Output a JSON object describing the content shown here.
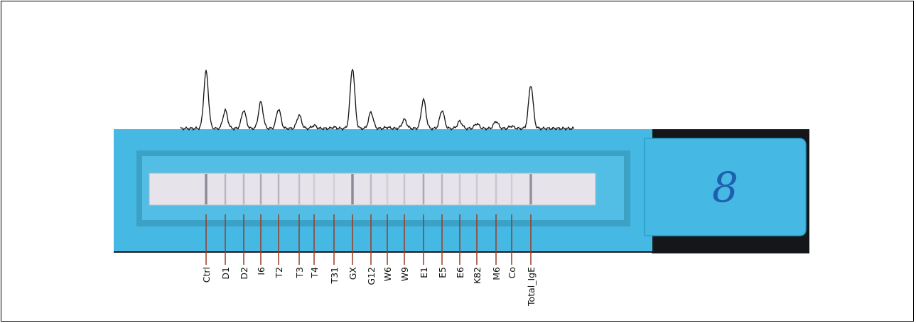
{
  "colors": {
    "strip_body": "#45B8E3",
    "strip_edge": "#2A9DCB",
    "window_bevel": "#3BA2C6",
    "membrane": "#E6E3EA",
    "background_dark": "#141619",
    "band": "#8E8A98",
    "leader_line": "#9B3B22",
    "trace": "#111111",
    "handwriting": "#1E5FAE"
  },
  "handwritten_mark": "8",
  "allergens": [
    {
      "label": "Ctrl",
      "peak": 0.95
    },
    {
      "label": "D1",
      "peak": 0.3
    },
    {
      "label": "D2",
      "peak": 0.3
    },
    {
      "label": "I6",
      "peak": 0.44
    },
    {
      "label": "T2",
      "peak": 0.32
    },
    {
      "label": "T3",
      "peak": 0.22
    },
    {
      "label": "T4",
      "peak": 0.05
    },
    {
      "label": "T31",
      "peak": 0.02
    },
    {
      "label": "GX",
      "peak": 1.0
    },
    {
      "label": "G12",
      "peak": 0.27
    },
    {
      "label": "W6",
      "peak": 0.02
    },
    {
      "label": "W9",
      "peak": 0.15
    },
    {
      "label": "E1",
      "peak": 0.48
    },
    {
      "label": "E5",
      "peak": 0.3
    },
    {
      "label": "E6",
      "peak": 0.12
    },
    {
      "label": "K82",
      "peak": 0.08
    },
    {
      "label": "M6",
      "peak": 0.12
    },
    {
      "label": "Co",
      "peak": 0.04
    },
    {
      "label": "Total_IgE",
      "peak": 0.72
    }
  ]
}
